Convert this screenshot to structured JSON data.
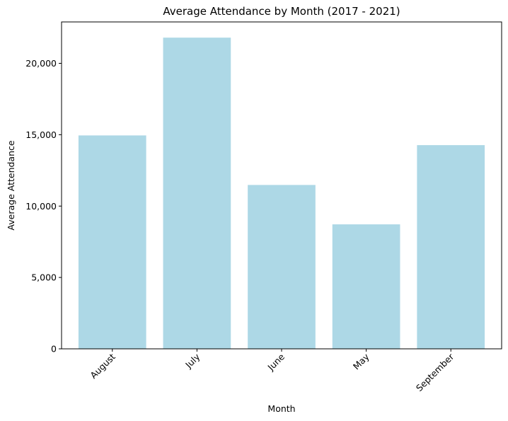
{
  "chart_data": {
    "type": "bar",
    "title": "Average Attendance by Month (2017 - 2021)",
    "xlabel": "Month",
    "ylabel": "Average Attendance",
    "categories": [
      "August",
      "July",
      "June",
      "May",
      "September"
    ],
    "values": [
      14950,
      21800,
      11480,
      8720,
      14270
    ],
    "ylim": [
      0,
      22900
    ],
    "yticks": [
      0,
      5000,
      10000,
      15000,
      20000
    ],
    "ytick_labels": [
      "0",
      "5,000",
      "10,000",
      "15,000",
      "20,000"
    ],
    "bar_color": "#add8e6",
    "grid": false,
    "legend": "none",
    "xtick_rotation_deg": 45
  }
}
